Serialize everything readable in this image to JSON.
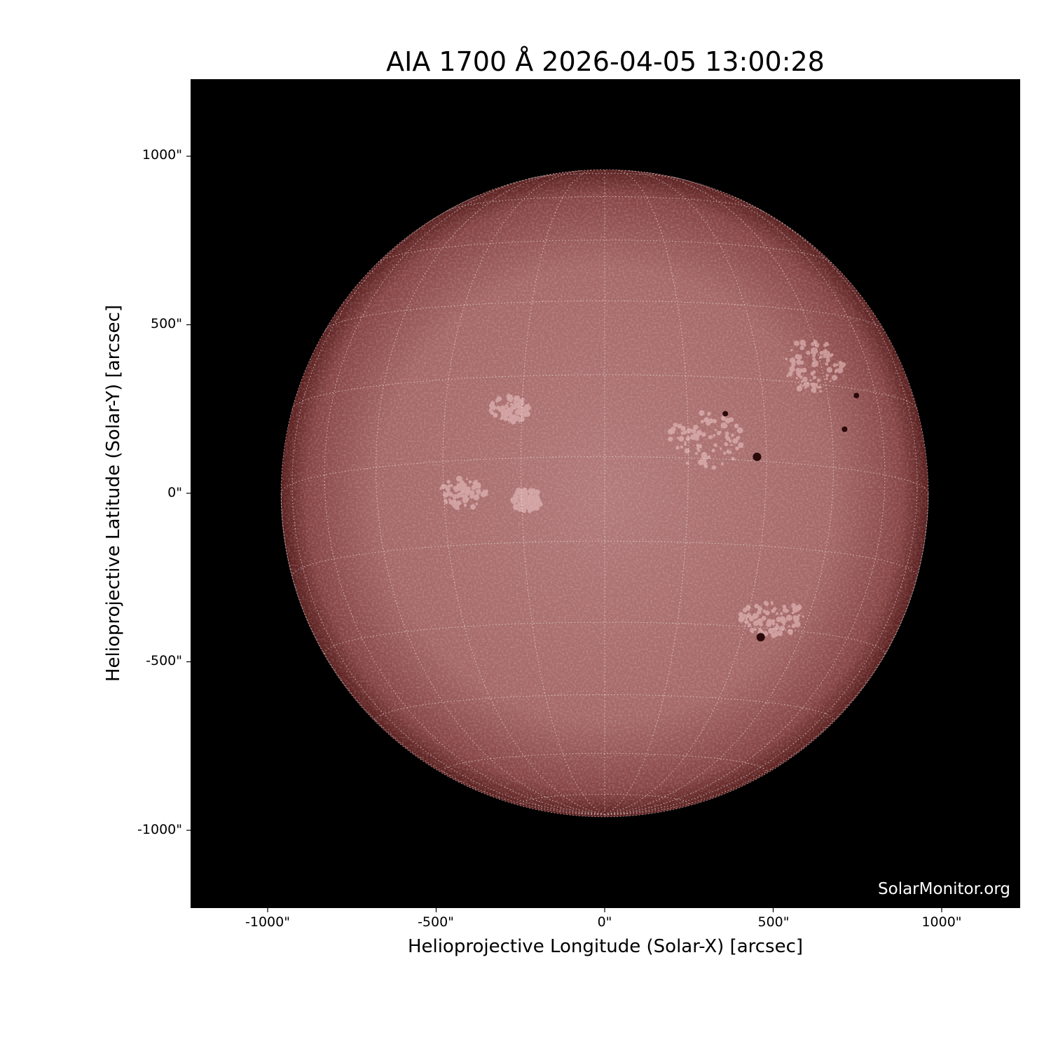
{
  "chart_data": {
    "type": "image",
    "title": "AIA 1700 Å 2026-04-05 13:00:28",
    "xlabel": "Helioprojective Longitude (Solar-X) [arcsec]",
    "ylabel": "Helioprojective Latitude (Solar-Y) [arcsec]",
    "xlim": [
      -1230,
      1230
    ],
    "ylim": [
      -1230,
      1230
    ],
    "xticks": [
      "-1000\"",
      "-500\"",
      "0\"",
      "500\"",
      "1000\""
    ],
    "yticks": [
      "1000\"",
      "500\"",
      "0\"",
      "-500\"",
      "-1000\""
    ],
    "tick_values": [
      -1000,
      -500,
      0,
      500,
      1000
    ],
    "solar_radius_arcsec": 960,
    "grid": "heliographic, dotted white, 15° spacing",
    "colormap": "sdoaia1700",
    "colors": {
      "background": "#000000",
      "disk_center": "#b57a7a",
      "disk_limb": "#5a2020",
      "grid": "#ffffff"
    },
    "sunspots": [
      [
        358,
        236
      ],
      [
        452,
        108
      ],
      [
        747,
        290
      ],
      [
        712,
        190
      ],
      [
        463,
        -427
      ]
    ],
    "watermark": "SolarMonitor.org"
  }
}
